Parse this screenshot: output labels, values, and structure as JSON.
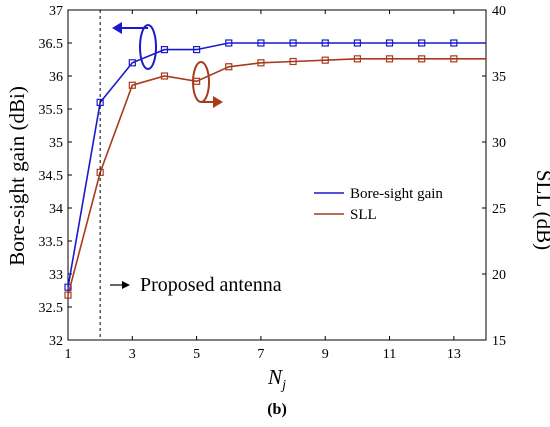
{
  "chart_data": {
    "type": "line",
    "xlabel_main": "N",
    "xlabel_sub": "j",
    "ylabel_left": "Bore-sight gain (dBi)",
    "ylabel_right": "SLL (dB)",
    "caption": "(b)",
    "x_ticks": [
      1,
      3,
      5,
      7,
      9,
      11,
      13
    ],
    "x_range": [
      1,
      14
    ],
    "y_left_ticks": [
      "32",
      "32.5",
      "33",
      "33.5",
      "34",
      "34.5",
      "35",
      "35.5",
      "36",
      "36.5",
      "37"
    ],
    "y_left_range": [
      32,
      37
    ],
    "y_right_ticks": [
      "15",
      "20",
      "25",
      "30",
      "35",
      "40"
    ],
    "y_right_range": [
      15,
      40
    ],
    "annotation": "Proposed antenna",
    "annotation_x": 2,
    "legend_position": "right-middle",
    "series": [
      {
        "name": "Bore-sight gain",
        "axis": "left",
        "color": "#1a1acc",
        "x": [
          1,
          2,
          3,
          4,
          5,
          6,
          7,
          8,
          9,
          10,
          11,
          12,
          13,
          14
        ],
        "values": [
          32.8,
          35.6,
          36.2,
          36.4,
          36.4,
          36.5,
          36.5,
          36.5,
          36.5,
          36.5,
          36.5,
          36.5,
          36.5,
          36.5
        ]
      },
      {
        "name": "SLL",
        "axis": "right",
        "color": "#a83a1e",
        "x": [
          1,
          2,
          3,
          4,
          5,
          6,
          7,
          8,
          9,
          10,
          11,
          12,
          13,
          14
        ],
        "values": [
          18.4,
          27.7,
          34.3,
          35.0,
          34.6,
          35.7,
          36.0,
          36.1,
          36.2,
          36.3,
          36.3,
          36.3,
          36.3,
          36.3
        ]
      }
    ]
  }
}
